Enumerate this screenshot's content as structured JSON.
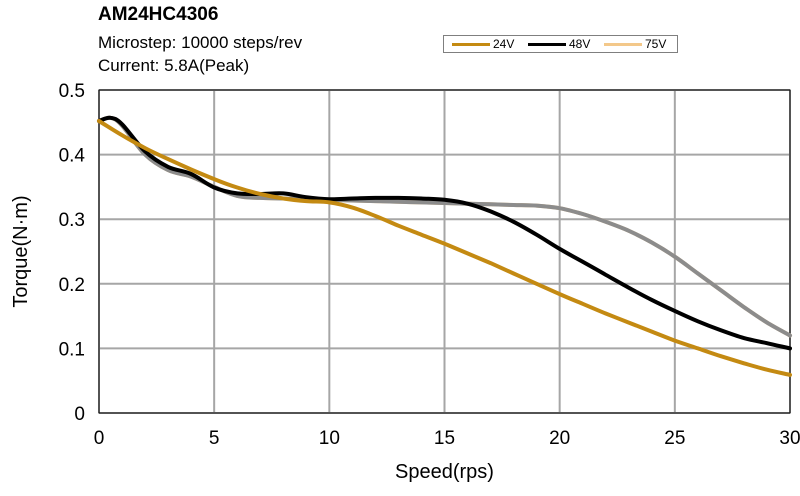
{
  "header": {
    "title": "AM24HC4306",
    "subtitle_lines": [
      "Microstep: 10000 steps/rev",
      "Current: 5.8A(Peak)"
    ]
  },
  "chart_data": {
    "type": "line",
    "title": "AM24HC4306",
    "subtitle": [
      "Microstep: 10000 steps/rev",
      "Current: 5.8A(Peak)"
    ],
    "xlabel": "Speed(rps)",
    "ylabel": "Torque(N·m)",
    "xlim": [
      0,
      30
    ],
    "ylim": [
      0,
      0.5
    ],
    "xticks": [
      0,
      5,
      10,
      15,
      20,
      25,
      30
    ],
    "yticks": [
      0,
      0.1,
      0.2,
      0.3,
      0.4,
      0.5
    ],
    "xtick_labels": [
      "0",
      "5",
      "10",
      "15",
      "20",
      "25",
      "30"
    ],
    "ytick_labels": [
      "0",
      "0.1",
      "0.2",
      "0.3",
      "0.4",
      "0.5"
    ],
    "grid": true,
    "legend_position": "top-right, above plot",
    "series": [
      {
        "name": "24V",
        "color": "#c48a12",
        "x": [
          0,
          1,
          2,
          3,
          4,
          5,
          6,
          7,
          8,
          9,
          10,
          11,
          12,
          13,
          14,
          15,
          16,
          17,
          18,
          19,
          20,
          21,
          22,
          23,
          24,
          25,
          26,
          27,
          28,
          29,
          30
        ],
        "y": [
          0.452,
          0.43,
          0.41,
          0.393,
          0.377,
          0.362,
          0.349,
          0.339,
          0.332,
          0.328,
          0.326,
          0.318,
          0.305,
          0.29,
          0.276,
          0.262,
          0.247,
          0.232,
          0.216,
          0.2,
          0.184,
          0.169,
          0.154,
          0.14,
          0.126,
          0.112,
          0.1,
          0.088,
          0.077,
          0.067,
          0.059
        ]
      },
      {
        "name": "48V",
        "color": "#000000",
        "x": [
          0,
          0.5,
          1,
          2,
          3,
          4,
          5,
          6,
          7,
          8,
          9,
          10,
          11,
          12,
          13,
          14,
          15,
          16,
          17,
          18,
          19,
          20,
          21,
          22,
          23,
          24,
          25,
          26,
          27,
          28,
          29,
          30
        ],
        "y": [
          0.452,
          0.457,
          0.447,
          0.405,
          0.381,
          0.37,
          0.349,
          0.34,
          0.339,
          0.34,
          0.334,
          0.331,
          0.332,
          0.333,
          0.333,
          0.332,
          0.33,
          0.324,
          0.312,
          0.296,
          0.276,
          0.254,
          0.234,
          0.214,
          0.194,
          0.175,
          0.158,
          0.142,
          0.128,
          0.116,
          0.108,
          0.1
        ]
      },
      {
        "name": "75V",
        "color": "#f3c88a",
        "x": [
          0,
          0.5,
          1,
          2,
          3,
          4,
          5,
          6,
          7,
          8,
          9,
          10,
          11,
          12,
          13,
          14,
          15,
          16,
          17,
          18,
          19,
          20,
          21,
          22,
          23,
          24,
          25,
          26,
          27,
          28,
          29,
          30
        ],
        "y": [
          0.452,
          0.457,
          0.445,
          0.4,
          0.376,
          0.366,
          0.35,
          0.336,
          0.333,
          0.332,
          0.331,
          0.33,
          0.329,
          0.328,
          0.327,
          0.326,
          0.325,
          0.324,
          0.323,
          0.322,
          0.321,
          0.317,
          0.308,
          0.296,
          0.282,
          0.264,
          0.242,
          0.216,
          0.19,
          0.164,
          0.14,
          0.12
        ]
      },
      {
        "name": "",
        "color": "#8c8c8c",
        "x": [
          0,
          0.5,
          1,
          2,
          3,
          4,
          5,
          6,
          7,
          8,
          9,
          10,
          11,
          12,
          13,
          14,
          15,
          16,
          17,
          18,
          19,
          20,
          21,
          22,
          23,
          24,
          25,
          26,
          27,
          28,
          29,
          30
        ],
        "y": [
          0.452,
          0.457,
          0.445,
          0.4,
          0.376,
          0.366,
          0.35,
          0.336,
          0.333,
          0.332,
          0.331,
          0.33,
          0.329,
          0.328,
          0.327,
          0.326,
          0.325,
          0.324,
          0.323,
          0.322,
          0.321,
          0.317,
          0.308,
          0.296,
          0.282,
          0.264,
          0.242,
          0.216,
          0.19,
          0.164,
          0.14,
          0.12
        ]
      }
    ]
  }
}
